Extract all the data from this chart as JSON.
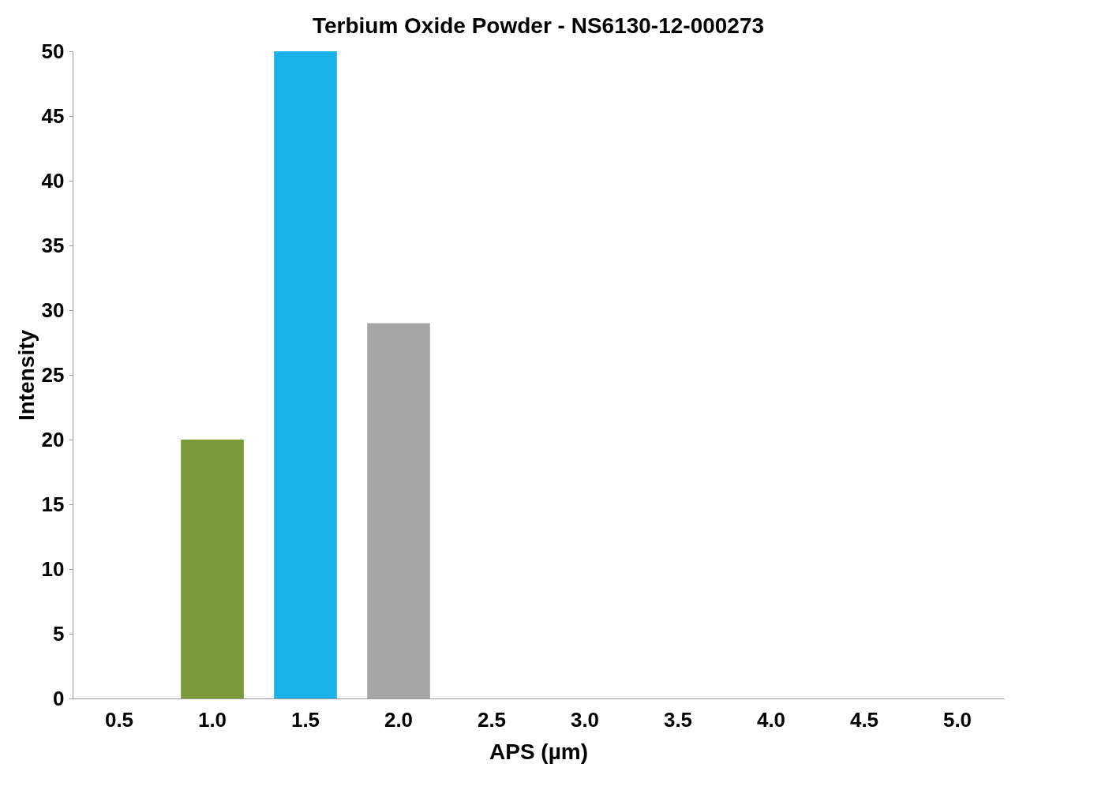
{
  "chart_data": {
    "type": "bar",
    "title": "Terbium Oxide Powder - NS6130-12-000273",
    "xlabel": "APS (µm)",
    "ylabel": "Intensity",
    "categories": [
      "0.5",
      "1.0",
      "1.5",
      "2.0",
      "2.5",
      "3.0",
      "3.5",
      "4.0",
      "4.5",
      "5.0"
    ],
    "values": [
      0,
      20,
      50,
      29,
      0,
      0,
      0,
      0,
      0,
      0
    ],
    "colors": [
      "#8b3a0e",
      "#7a9a3a",
      "#1ab0e8",
      "#a6a6a6",
      "#6e8a5e",
      "#2e5c96",
      "#6a8f55",
      "#4a4228",
      "#4a6e9e",
      "#8a4a48"
    ],
    "ylim": [
      0,
      50
    ],
    "yticks": [
      0,
      5,
      10,
      15,
      20,
      25,
      30,
      35,
      40,
      45,
      50
    ],
    "grid": false,
    "legend": false
  }
}
